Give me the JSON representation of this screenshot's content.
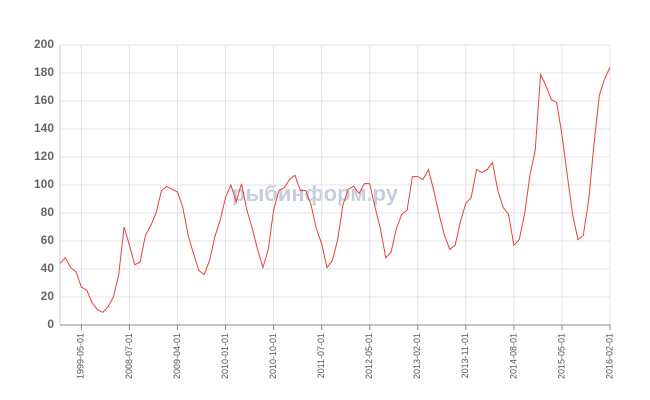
{
  "chart_data": {
    "type": "line",
    "watermark": "рыбинформ.ру",
    "categories": [
      null,
      null,
      null,
      null,
      "1999-05-01",
      null,
      null,
      null,
      null,
      null,
      null,
      null,
      null,
      "2008-07-01",
      null,
      null,
      null,
      null,
      null,
      null,
      null,
      null,
      "2009-04-01",
      null,
      null,
      null,
      null,
      null,
      null,
      null,
      null,
      "2010-01-01",
      null,
      null,
      null,
      null,
      null,
      null,
      null,
      null,
      "2010-10-01",
      null,
      null,
      null,
      null,
      null,
      null,
      null,
      null,
      "2011-07-01",
      null,
      null,
      null,
      null,
      null,
      null,
      null,
      null,
      "2012-05-01",
      null,
      null,
      null,
      null,
      null,
      null,
      null,
      null,
      "2013-02-01",
      null,
      null,
      null,
      null,
      null,
      null,
      null,
      null,
      "2013-11-01",
      null,
      null,
      null,
      null,
      null,
      null,
      null,
      null,
      "2014-08-01",
      null,
      null,
      null,
      null,
      null,
      null,
      null,
      null,
      "2015-05-01",
      null,
      null,
      null,
      null,
      null,
      null,
      null,
      null,
      "2016-02-01"
    ],
    "series": [
      {
        "color": "#e8413c",
        "values": [
          44,
          48,
          41,
          38,
          27,
          25,
          16,
          11,
          9,
          13,
          20,
          36,
          70,
          57,
          43,
          45,
          64,
          71,
          80,
          96,
          99,
          97,
          95,
          84,
          64,
          51,
          39,
          36,
          46,
          63,
          75,
          91,
          100,
          88,
          101,
          82,
          69,
          54,
          41,
          54,
          82,
          96,
          98,
          104,
          107,
          96,
          96,
          86,
          69,
          58,
          41,
          46,
          61,
          86,
          97,
          99,
          94,
          101,
          101,
          84,
          69,
          48,
          52,
          69,
          79,
          82,
          106,
          106,
          104,
          111,
          96,
          79,
          64,
          54,
          57,
          74,
          87,
          91,
          111,
          109,
          111,
          116,
          96,
          84,
          79,
          57,
          61,
          79,
          107,
          125,
          179,
          171,
          161,
          159,
          136,
          107,
          79,
          61,
          64,
          89,
          129,
          164,
          176,
          184
        ]
      }
    ],
    "ylim": [
      0,
      200
    ],
    "yticks": [
      0,
      20,
      40,
      60,
      80,
      100,
      120,
      140,
      160,
      180,
      200
    ],
    "grid": true
  }
}
